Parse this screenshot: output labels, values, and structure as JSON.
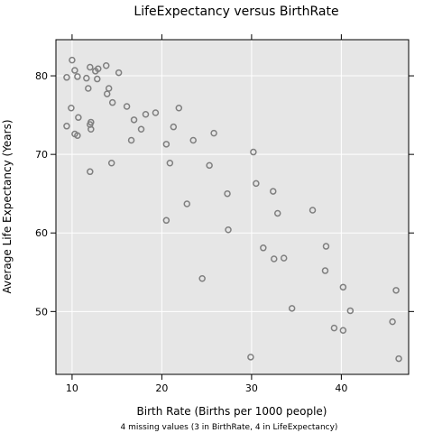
{
  "chart_data": {
    "type": "scatter",
    "title": "LifeExpectancy versus BirthRate",
    "xlabel": "Birth Rate (Births per 1000 people)",
    "ylabel": "Average Life Expectancy (Years)",
    "footnote": "4 missing values (3 in BirthRate, 4 in LifeExpectancy)",
    "xlim": [
      8.2,
      47.5
    ],
    "ylim": [
      42.0,
      84.6
    ],
    "xticks": [
      10,
      20,
      30,
      40
    ],
    "yticks": [
      50,
      60,
      70,
      80
    ],
    "grid": true,
    "background_color": "#e6e6e6",
    "point_color": "#7f7f7f",
    "points": [
      [
        9.4,
        79.8
      ],
      [
        10.0,
        82.0
      ],
      [
        10.3,
        80.7
      ],
      [
        10.6,
        79.9
      ],
      [
        11.6,
        79.7
      ],
      [
        12.0,
        81.1
      ],
      [
        12.6,
        80.6
      ],
      [
        12.9,
        80.9
      ],
      [
        13.8,
        81.3
      ],
      [
        15.2,
        80.4
      ],
      [
        12.8,
        79.6
      ],
      [
        11.8,
        78.4
      ],
      [
        14.1,
        78.4
      ],
      [
        13.9,
        77.7
      ],
      [
        14.5,
        76.6
      ],
      [
        9.9,
        75.9
      ],
      [
        10.7,
        74.7
      ],
      [
        12.1,
        74.1
      ],
      [
        12.0,
        73.8
      ],
      [
        9.4,
        73.6
      ],
      [
        12.1,
        73.2
      ],
      [
        10.3,
        72.6
      ],
      [
        10.6,
        72.4
      ],
      [
        16.1,
        76.1
      ],
      [
        16.9,
        74.4
      ],
      [
        18.2,
        75.1
      ],
      [
        19.3,
        75.3
      ],
      [
        21.9,
        75.9
      ],
      [
        17.7,
        73.2
      ],
      [
        21.3,
        73.5
      ],
      [
        16.6,
        71.8
      ],
      [
        20.5,
        71.3
      ],
      [
        23.5,
        71.8
      ],
      [
        25.8,
        72.7
      ],
      [
        14.4,
        68.9
      ],
      [
        20.9,
        68.9
      ],
      [
        25.3,
        68.6
      ],
      [
        12.0,
        67.8
      ],
      [
        30.2,
        70.3
      ],
      [
        27.3,
        65.0
      ],
      [
        30.5,
        66.3
      ],
      [
        32.4,
        65.3
      ],
      [
        36.8,
        62.9
      ],
      [
        32.9,
        62.5
      ],
      [
        22.8,
        63.7
      ],
      [
        20.5,
        61.6
      ],
      [
        27.4,
        60.4
      ],
      [
        31.3,
        58.1
      ],
      [
        38.3,
        58.3
      ],
      [
        32.5,
        56.7
      ],
      [
        33.6,
        56.8
      ],
      [
        38.2,
        55.2
      ],
      [
        24.5,
        54.2
      ],
      [
        40.2,
        53.1
      ],
      [
        46.1,
        52.7
      ],
      [
        34.5,
        50.4
      ],
      [
        41.0,
        50.1
      ],
      [
        39.2,
        47.9
      ],
      [
        40.2,
        47.6
      ],
      [
        45.7,
        48.7
      ],
      [
        29.9,
        44.2
      ],
      [
        46.4,
        44.0
      ]
    ]
  }
}
